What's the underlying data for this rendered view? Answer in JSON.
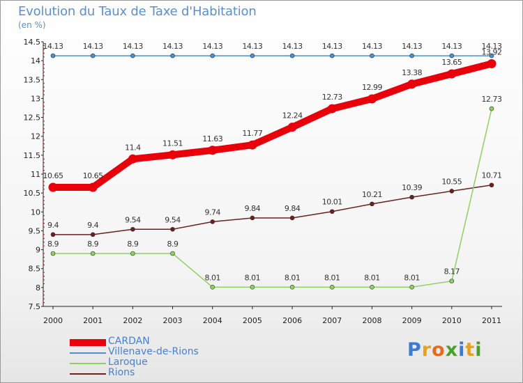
{
  "header": {
    "title": "Evolution du Taux de Taxe d'Habitation",
    "subtitle": "(en %)"
  },
  "brand": {
    "letters": [
      "P",
      "r",
      "o",
      "x",
      "i",
      "t",
      "i"
    ],
    "colors": [
      "#3a7bd5",
      "#e8a020",
      "#e86a1a",
      "#49a02b",
      "#3a7bd5",
      "#e8a020",
      "#49a02b"
    ]
  },
  "chart_data": {
    "type": "line",
    "title": "Evolution du Taux de Taxe d'Habitation",
    "ylabel": "(en %)",
    "xlabel": "",
    "x": [
      "2000",
      "2001",
      "2002",
      "2003",
      "2004",
      "2005",
      "2006",
      "2007",
      "2008",
      "2009",
      "2010",
      "2011"
    ],
    "ylim": [
      7.5,
      14.5
    ],
    "yticks": [
      "7.5",
      "8",
      "8.5",
      "9",
      "9.5",
      "10",
      "10.5",
      "11",
      "11.5",
      "12",
      "12.5",
      "13",
      "13.5",
      "14",
      "14.5"
    ],
    "grid": false,
    "legend_position": "bottom-left",
    "series": [
      {
        "name": "CARDAN",
        "color": "#e8000b",
        "style": "thick",
        "values": [
          10.65,
          10.65,
          11.4,
          11.51,
          11.63,
          11.77,
          12.24,
          12.73,
          12.99,
          13.38,
          13.65,
          13.92
        ],
        "labels": [
          "10.65",
          "10.65",
          "11.4",
          "11.51",
          "11.63",
          "11.77",
          "12.24",
          "12.73",
          "12.99",
          "13.38",
          "13.65",
          "13.92"
        ]
      },
      {
        "name": "Villenave-de-Rions",
        "color": "#4d8fc9",
        "style": "thin",
        "values": [
          14.13,
          14.13,
          14.13,
          14.13,
          14.13,
          14.13,
          14.13,
          14.13,
          14.13,
          14.13,
          14.13,
          14.13
        ],
        "labels": [
          "14.13",
          "14.13",
          "14.13",
          "14.13",
          "14.13",
          "14.13",
          "14.13",
          "14.13",
          "14.13",
          "14.13",
          "14.13",
          "14.13"
        ]
      },
      {
        "name": "Laroque",
        "color": "#8fd060",
        "style": "thin",
        "values": [
          8.9,
          8.9,
          8.9,
          8.9,
          8.01,
          8.01,
          8.01,
          8.01,
          8.01,
          8.01,
          8.17,
          12.73
        ],
        "labels": [
          "8.9",
          "8.9",
          "8.9",
          "8.9",
          "8.01",
          "8.01",
          "8.01",
          "8.01",
          "8.01",
          "8.01",
          "8.17",
          "12.73"
        ]
      },
      {
        "name": "Rions",
        "color": "#6b1f1f",
        "style": "thin",
        "values": [
          9.4,
          9.4,
          9.54,
          9.54,
          9.74,
          9.84,
          9.84,
          10.01,
          10.21,
          10.39,
          10.55,
          10.71
        ],
        "labels": [
          "9.4",
          "9.4",
          "9.54",
          "9.54",
          "9.74",
          "9.84",
          "9.84",
          "10.01",
          "10.21",
          "10.39",
          "10.55",
          "10.71"
        ]
      }
    ]
  }
}
